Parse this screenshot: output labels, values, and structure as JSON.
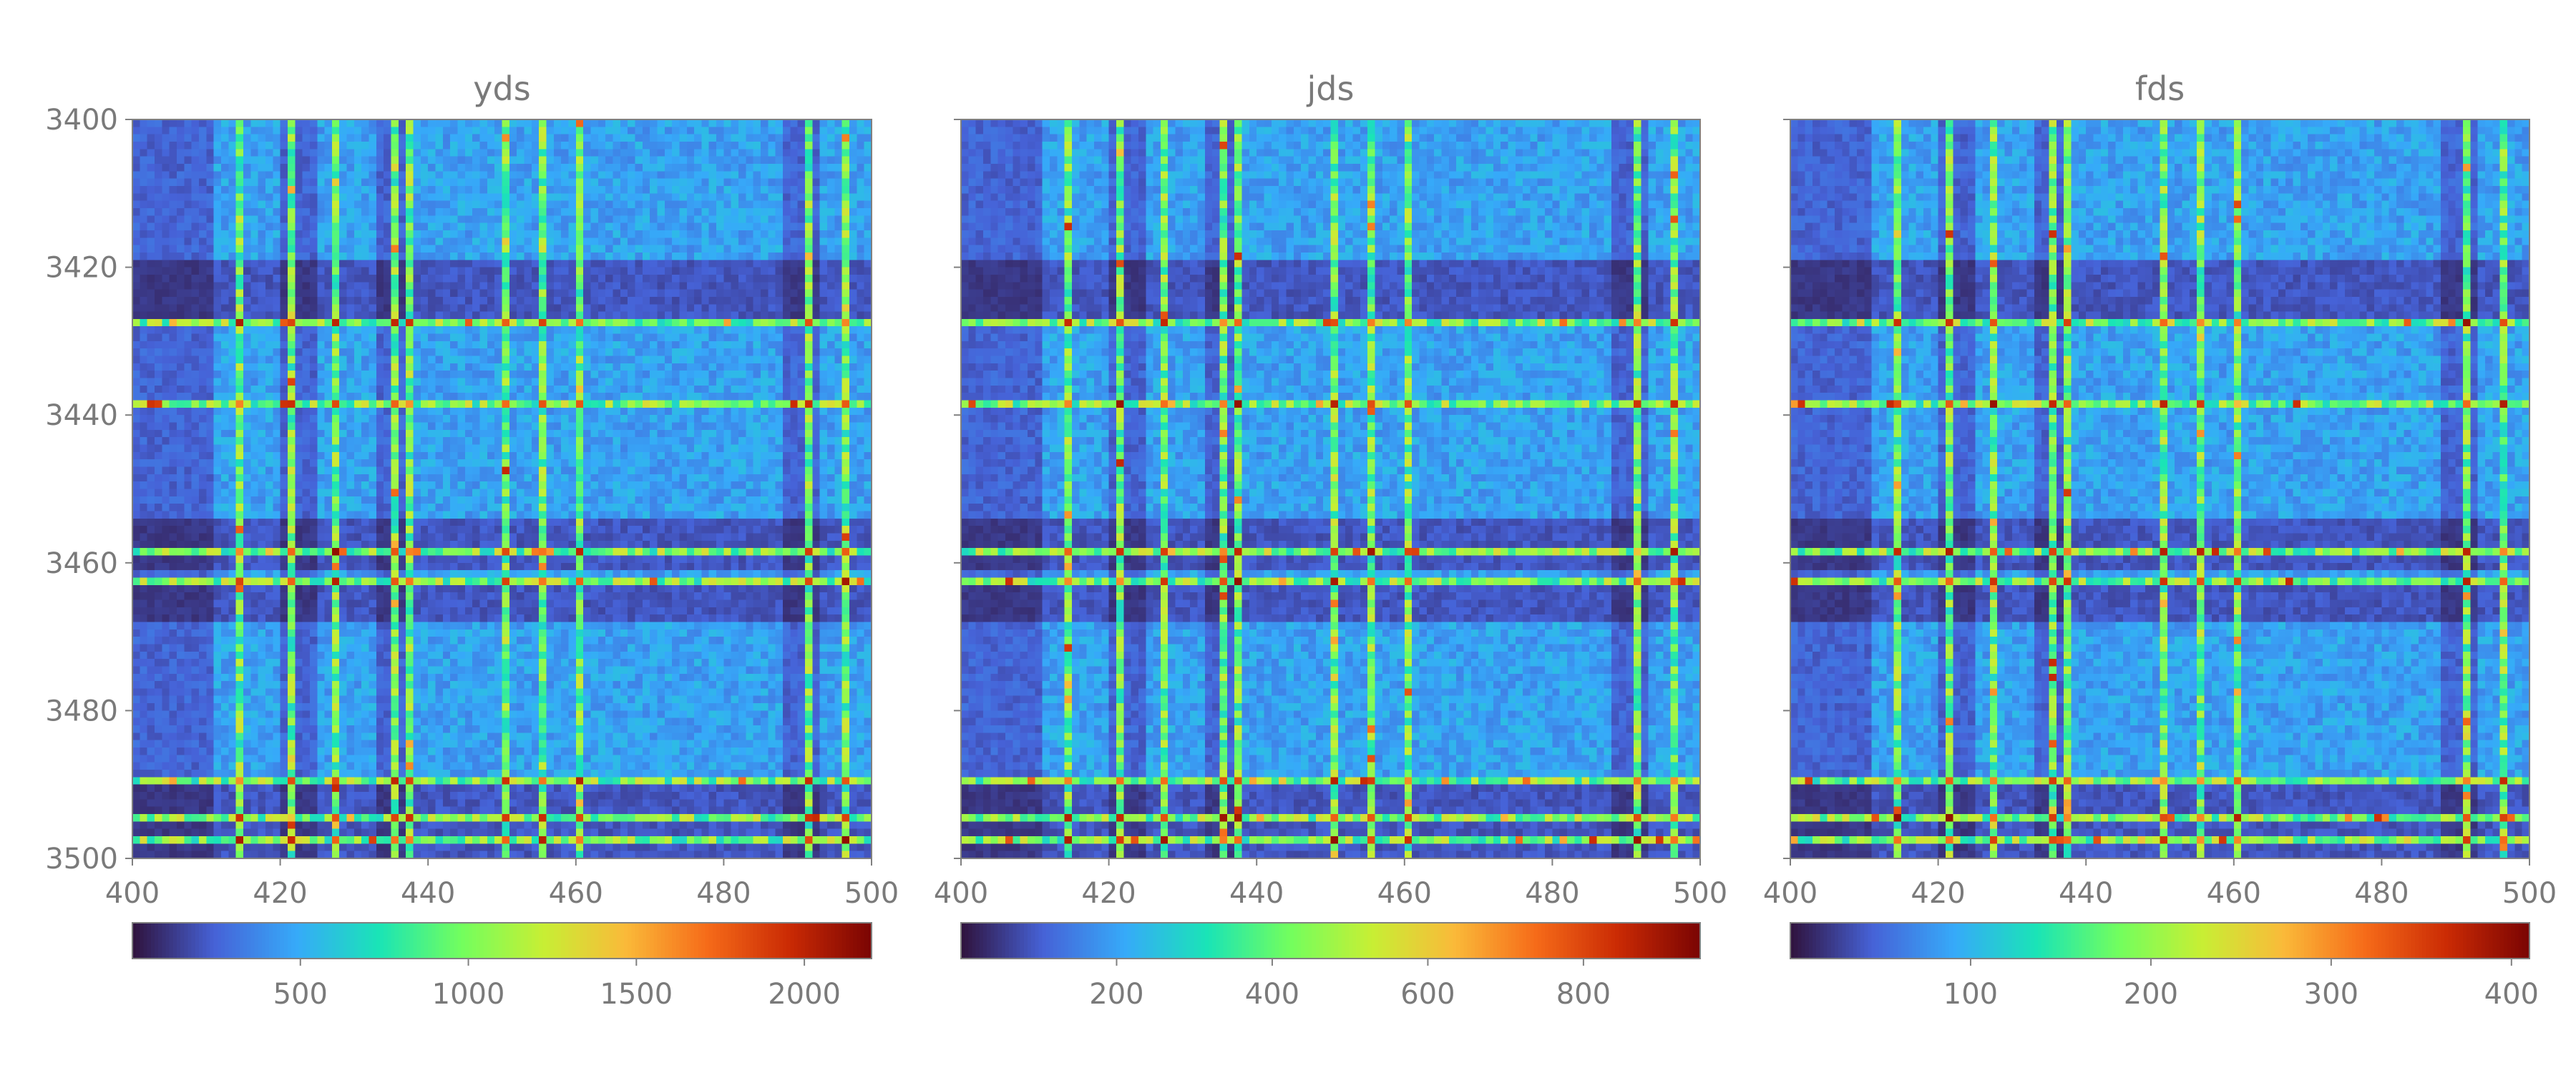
{
  "chart_data": {
    "type": "heatmap",
    "x_range": [
      400,
      500
    ],
    "y_range": [
      3400,
      3500
    ],
    "y_axis_inverted": true,
    "x_ticks": [
      400,
      420,
      440,
      460,
      480,
      500
    ],
    "y_ticks": [
      3400,
      3420,
      3440,
      3460,
      3480,
      3500
    ],
    "colormap": "turbo",
    "colormap_stops": [
      "#30123b",
      "#4662d7",
      "#36aaf9",
      "#1ae4b6",
      "#72fe5e",
      "#c7ef34",
      "#faba39",
      "#f66b19",
      "#ca2a04",
      "#7a0403"
    ],
    "bins": 100,
    "structure": {
      "bright_columns": [
        414,
        421,
        427,
        435,
        437,
        450,
        455,
        460,
        491,
        496
      ],
      "bright_rows": [
        3427,
        3438,
        3458,
        3462,
        3489,
        3494,
        3497
      ],
      "dark_column_bands": [
        [
          400,
          410
        ],
        [
          420,
          424
        ],
        [
          433,
          436
        ],
        [
          488,
          492
        ]
      ],
      "dark_row_bands": [
        [
          3419,
          3427
        ],
        [
          3454,
          3460
        ],
        [
          3462,
          3467
        ],
        [
          3490,
          3499
        ]
      ]
    },
    "panels": [
      {
        "title": "yds",
        "colorbar_min": 0,
        "colorbar_max": 2200,
        "colorbar_ticks": [
          500,
          1000,
          1500,
          2000
        ]
      },
      {
        "title": "jds",
        "colorbar_min": 0,
        "colorbar_max": 950,
        "colorbar_ticks": [
          200,
          400,
          600,
          800
        ]
      },
      {
        "title": "fds",
        "colorbar_min": 0,
        "colorbar_max": 410,
        "colorbar_ticks": [
          100,
          200,
          300,
          400
        ]
      }
    ]
  }
}
